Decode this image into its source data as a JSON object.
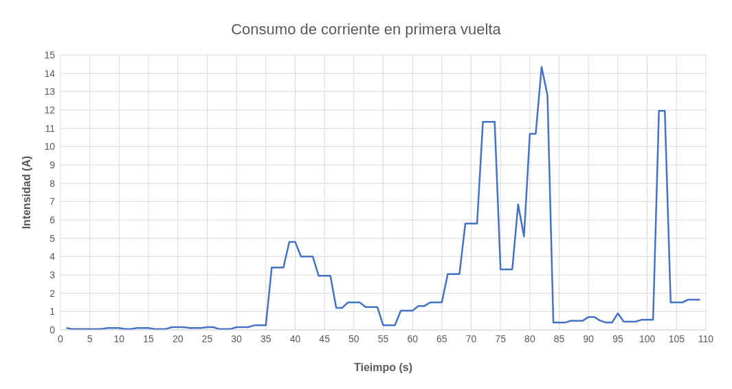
{
  "chart_data": {
    "type": "line",
    "title": "Consumo de corriente en primera vuelta",
    "xlabel": "Tieimpo (s)",
    "ylabel": "Intensidad (A)",
    "x": [
      1,
      2,
      3,
      4,
      5,
      6,
      7,
      8,
      9,
      10,
      11,
      12,
      13,
      14,
      15,
      16,
      17,
      18,
      19,
      20,
      21,
      22,
      23,
      24,
      25,
      26,
      27,
      28,
      29,
      30,
      31,
      32,
      33,
      34,
      35,
      36,
      37,
      38,
      39,
      40,
      41,
      42,
      43,
      44,
      45,
      46,
      47,
      48,
      49,
      50,
      51,
      52,
      53,
      54,
      55,
      56,
      57,
      58,
      59,
      60,
      61,
      62,
      63,
      64,
      65,
      66,
      67,
      68,
      69,
      70,
      71,
      72,
      73,
      74,
      75,
      76,
      77,
      78,
      79,
      80,
      81,
      82,
      83,
      84,
      85,
      86,
      87,
      88,
      89,
      90,
      91,
      92,
      93,
      94,
      95,
      96,
      97,
      98,
      99,
      100,
      101,
      102,
      103,
      104,
      105,
      106,
      107,
      108,
      109
    ],
    "series": [
      {
        "color": "#4472c4",
        "values": [
          0.1,
          0.05,
          0.05,
          0.05,
          0.05,
          0.05,
          0.05,
          0.1,
          0.1,
          0.1,
          0.05,
          0.05,
          0.1,
          0.1,
          0.1,
          0.05,
          0.05,
          0.05,
          0.15,
          0.15,
          0.15,
          0.1,
          0.1,
          0.1,
          0.15,
          0.15,
          0.05,
          0.05,
          0.05,
          0.15,
          0.15,
          0.15,
          0.25,
          0.25,
          0.25,
          3.4,
          3.4,
          3.4,
          4.8,
          4.8,
          4.0,
          4.0,
          4.0,
          2.95,
          2.95,
          2.95,
          1.2,
          1.2,
          1.5,
          1.5,
          1.5,
          1.25,
          1.25,
          1.25,
          0.25,
          0.25,
          0.25,
          1.05,
          1.05,
          1.05,
          1.3,
          1.3,
          1.5,
          1.5,
          1.5,
          3.05,
          3.05,
          3.05,
          5.8,
          5.8,
          5.8,
          11.35,
          11.35,
          11.35,
          3.3,
          3.3,
          3.3,
          6.85,
          5.1,
          10.7,
          10.7,
          14.35,
          12.8,
          0.4,
          0.4,
          0.4,
          0.5,
          0.5,
          0.5,
          0.7,
          0.7,
          0.5,
          0.4,
          0.4,
          0.9,
          0.45,
          0.45,
          0.45,
          0.55,
          0.55,
          0.55,
          11.95,
          11.95,
          1.5,
          1.5,
          1.5,
          1.65,
          1.65,
          1.65
        ]
      }
    ],
    "xlim": [
      0,
      110
    ],
    "xticks": [
      0,
      5,
      10,
      15,
      20,
      25,
      30,
      35,
      40,
      45,
      50,
      55,
      60,
      65,
      70,
      75,
      80,
      85,
      90,
      95,
      100,
      105,
      110
    ],
    "ylim": [
      0,
      15
    ],
    "yticks": [
      0,
      1,
      2,
      3,
      4,
      5,
      6,
      7,
      8,
      9,
      10,
      11,
      12,
      13,
      14,
      15
    ],
    "grid": true,
    "marker": "none",
    "line_style": "solid",
    "legend": false
  }
}
